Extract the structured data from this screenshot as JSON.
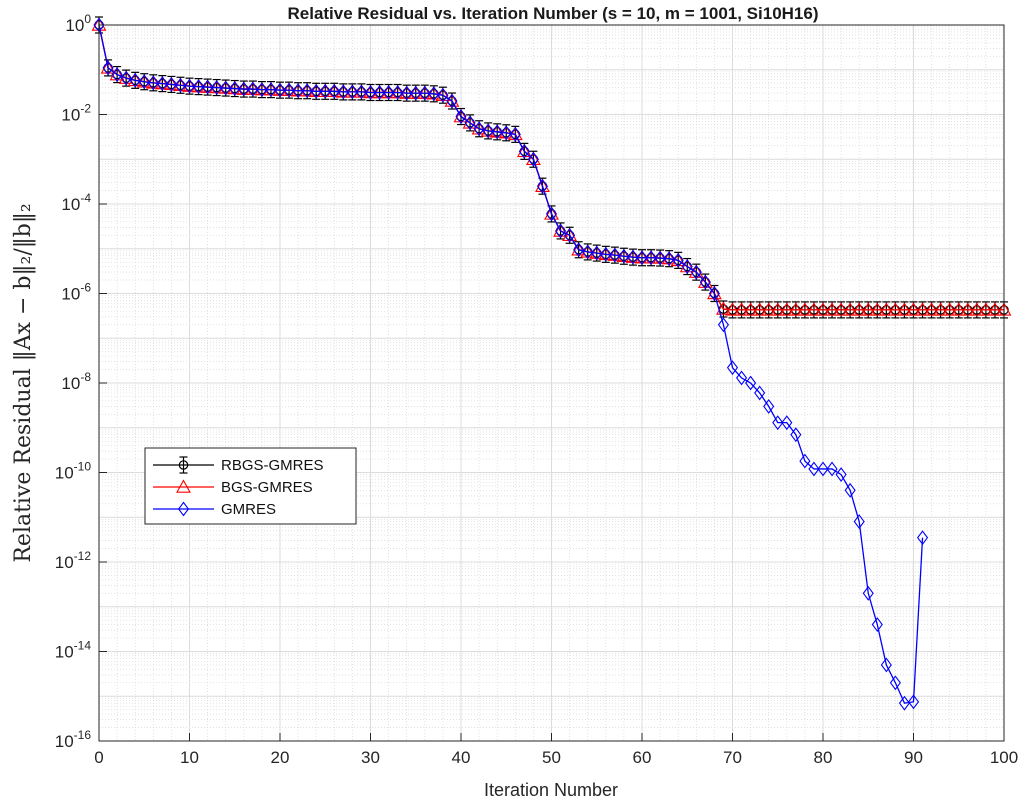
{
  "chart_data": {
    "type": "line",
    "title": "Relative Residual vs. Iteration Number (s = 10, m = 1001, Si10H16)",
    "xlabel": "Iteration Number",
    "ylabel": "Relative Residual ‖Ax − b‖₂/‖b‖₂",
    "xlim": [
      0,
      100
    ],
    "ylim": [
      1e-16,
      1
    ],
    "yscale": "log",
    "grid": true,
    "minor_grid": true,
    "legend_position": "left-middle",
    "xticks": [
      "0",
      "10",
      "20",
      "30",
      "40",
      "50",
      "60",
      "70",
      "80",
      "90",
      "100"
    ],
    "yticks": [
      {
        "base": "10",
        "exp": "0"
      },
      {
        "base": "10",
        "exp": "-2"
      },
      {
        "base": "10",
        "exp": "-4"
      },
      {
        "base": "10",
        "exp": "-6"
      },
      {
        "base": "10",
        "exp": "-8"
      },
      {
        "base": "10",
        "exp": "-10"
      },
      {
        "base": "10",
        "exp": "-12"
      },
      {
        "base": "10",
        "exp": "-14"
      },
      {
        "base": "10",
        "exp": "-16"
      }
    ],
    "series": [
      {
        "name": "RBGS-GMRES",
        "color": "#000000",
        "marker": "errorbar-circle",
        "x": [
          0,
          1,
          2,
          3,
          4,
          5,
          6,
          7,
          8,
          9,
          10,
          11,
          12,
          13,
          14,
          15,
          16,
          17,
          18,
          19,
          20,
          21,
          22,
          23,
          24,
          25,
          26,
          27,
          28,
          29,
          30,
          31,
          32,
          33,
          34,
          35,
          36,
          37,
          38,
          39,
          40,
          41,
          42,
          43,
          44,
          45,
          46,
          47,
          48,
          49,
          50,
          51,
          52,
          53,
          54,
          55,
          56,
          57,
          58,
          59,
          60,
          61,
          62,
          63,
          64,
          65,
          66,
          67,
          68,
          69,
          70,
          71,
          72,
          73,
          74,
          75,
          76,
          77,
          78,
          79,
          80,
          81,
          82,
          83,
          84,
          85,
          86,
          87,
          88,
          89,
          90,
          91,
          92,
          93,
          94,
          95,
          96,
          97,
          98,
          99,
          100
        ],
        "y": [
          1,
          0.11,
          0.078,
          0.065,
          0.058,
          0.054,
          0.051,
          0.049,
          0.047,
          0.045,
          0.043,
          0.042,
          0.041,
          0.04,
          0.039,
          0.038,
          0.037,
          0.037,
          0.036,
          0.036,
          0.035,
          0.035,
          0.034,
          0.034,
          0.033,
          0.033,
          0.033,
          0.032,
          0.032,
          0.032,
          0.031,
          0.031,
          0.031,
          0.031,
          0.03,
          0.03,
          0.03,
          0.029,
          0.027,
          0.02,
          0.009,
          0.0065,
          0.0048,
          0.0043,
          0.0041,
          0.0039,
          0.0036,
          0.0015,
          0.001,
          0.00025,
          6e-05,
          2.5e-05,
          2e-05,
          9.5e-06,
          8.5e-06,
          8e-06,
          7.5e-06,
          7.2e-06,
          6.8e-06,
          6.5e-06,
          6.3e-06,
          6.3e-06,
          6.2e-06,
          6e-06,
          5.5e-06,
          4e-06,
          3e-06,
          1.8e-06,
          1e-06,
          4.5e-07,
          4.3e-07,
          4.3e-07,
          4.3e-07,
          4.3e-07,
          4.3e-07,
          4.3e-07,
          4.3e-07,
          4.3e-07,
          4.3e-07,
          4.3e-07,
          4.3e-07,
          4.3e-07,
          4.3e-07,
          4.3e-07,
          4.3e-07,
          4.3e-07,
          4.3e-07,
          4.3e-07,
          4.3e-07,
          4.3e-07,
          4.3e-07,
          4.3e-07,
          4.3e-07,
          4.3e-07,
          4.3e-07,
          4.3e-07,
          4.3e-07,
          4.3e-07,
          4.3e-07,
          4.3e-07,
          4.3e-07
        ]
      },
      {
        "name": "BGS-GMRES",
        "color": "#ff0000",
        "marker": "triangle",
        "x": [
          0,
          1,
          2,
          3,
          4,
          5,
          6,
          7,
          8,
          9,
          10,
          11,
          12,
          13,
          14,
          15,
          16,
          17,
          18,
          19,
          20,
          21,
          22,
          23,
          24,
          25,
          26,
          27,
          28,
          29,
          30,
          31,
          32,
          33,
          34,
          35,
          36,
          37,
          38,
          39,
          40,
          41,
          42,
          43,
          44,
          45,
          46,
          47,
          48,
          49,
          50,
          51,
          52,
          53,
          54,
          55,
          56,
          57,
          58,
          59,
          60,
          61,
          62,
          63,
          64,
          65,
          66,
          67,
          68,
          69,
          70,
          71,
          72,
          73,
          74,
          75,
          76,
          77,
          78,
          79,
          80,
          81,
          82,
          83,
          84,
          85,
          86,
          87,
          88,
          89,
          90,
          91,
          92,
          93,
          94,
          95,
          96,
          97,
          98,
          99,
          100
        ],
        "y": [
          1,
          0.11,
          0.078,
          0.065,
          0.058,
          0.054,
          0.051,
          0.049,
          0.047,
          0.045,
          0.043,
          0.042,
          0.041,
          0.04,
          0.039,
          0.038,
          0.037,
          0.037,
          0.036,
          0.036,
          0.035,
          0.035,
          0.034,
          0.034,
          0.033,
          0.033,
          0.033,
          0.032,
          0.032,
          0.032,
          0.031,
          0.031,
          0.031,
          0.031,
          0.03,
          0.03,
          0.03,
          0.029,
          0.027,
          0.02,
          0.009,
          0.0065,
          0.0048,
          0.0043,
          0.0041,
          0.0039,
          0.0036,
          0.0015,
          0.001,
          0.00025,
          6e-05,
          2.5e-05,
          2e-05,
          9.5e-06,
          8.5e-06,
          8e-06,
          7.5e-06,
          7.2e-06,
          6.8e-06,
          6.5e-06,
          6.3e-06,
          6.3e-06,
          6.2e-06,
          6e-06,
          5.5e-06,
          4e-06,
          3e-06,
          1.8e-06,
          1e-06,
          4.5e-07,
          4.3e-07,
          4.3e-07,
          4.3e-07,
          4.3e-07,
          4.3e-07,
          4.3e-07,
          4.3e-07,
          4.3e-07,
          4.3e-07,
          4.3e-07,
          4.3e-07,
          4.3e-07,
          4.3e-07,
          4.3e-07,
          4.3e-07,
          4.3e-07,
          4.3e-07,
          4.3e-07,
          4.3e-07,
          4.3e-07,
          4.3e-07,
          4.3e-07,
          4.3e-07,
          4.3e-07,
          4.3e-07,
          4.3e-07,
          4.3e-07,
          4.3e-07,
          4.3e-07,
          4.3e-07,
          4.3e-07
        ]
      },
      {
        "name": "GMRES",
        "color": "#0000ff",
        "marker": "diamond",
        "x": [
          0,
          1,
          2,
          3,
          4,
          5,
          6,
          7,
          8,
          9,
          10,
          11,
          12,
          13,
          14,
          15,
          16,
          17,
          18,
          19,
          20,
          21,
          22,
          23,
          24,
          25,
          26,
          27,
          28,
          29,
          30,
          31,
          32,
          33,
          34,
          35,
          36,
          37,
          38,
          39,
          40,
          41,
          42,
          43,
          44,
          45,
          46,
          47,
          48,
          49,
          50,
          51,
          52,
          53,
          54,
          55,
          56,
          57,
          58,
          59,
          60,
          61,
          62,
          63,
          64,
          65,
          66,
          67,
          68,
          69,
          70,
          71,
          72,
          73,
          74,
          75,
          76,
          77,
          78,
          79,
          80,
          81,
          82,
          83,
          84,
          85,
          86,
          87,
          88,
          89,
          90,
          91
        ],
        "y": [
          1,
          0.11,
          0.078,
          0.065,
          0.058,
          0.054,
          0.051,
          0.049,
          0.047,
          0.045,
          0.043,
          0.042,
          0.041,
          0.04,
          0.039,
          0.038,
          0.037,
          0.037,
          0.036,
          0.036,
          0.035,
          0.035,
          0.034,
          0.034,
          0.033,
          0.033,
          0.033,
          0.032,
          0.032,
          0.032,
          0.031,
          0.031,
          0.031,
          0.031,
          0.03,
          0.03,
          0.03,
          0.029,
          0.027,
          0.02,
          0.009,
          0.0065,
          0.0048,
          0.0043,
          0.0041,
          0.0039,
          0.0036,
          0.0015,
          0.001,
          0.00025,
          6e-05,
          2.5e-05,
          2e-05,
          9.5e-06,
          8.5e-06,
          8e-06,
          7.5e-06,
          7.2e-06,
          6.8e-06,
          6.5e-06,
          6.3e-06,
          6.3e-06,
          6.2e-06,
          6e-06,
          5.5e-06,
          4e-06,
          3e-06,
          1.8e-06,
          1e-06,
          2e-07,
          2.2e-08,
          1.3e-08,
          1e-08,
          6e-09,
          3e-09,
          1.3e-09,
          1.3e-09,
          7e-10,
          1.8e-10,
          1.2e-10,
          1.2e-10,
          1.2e-10,
          9e-11,
          4e-11,
          8e-12,
          2e-13,
          4e-14,
          5e-15,
          2e-15,
          7e-16,
          7.5e-16,
          3.5e-12
        ]
      }
    ]
  }
}
